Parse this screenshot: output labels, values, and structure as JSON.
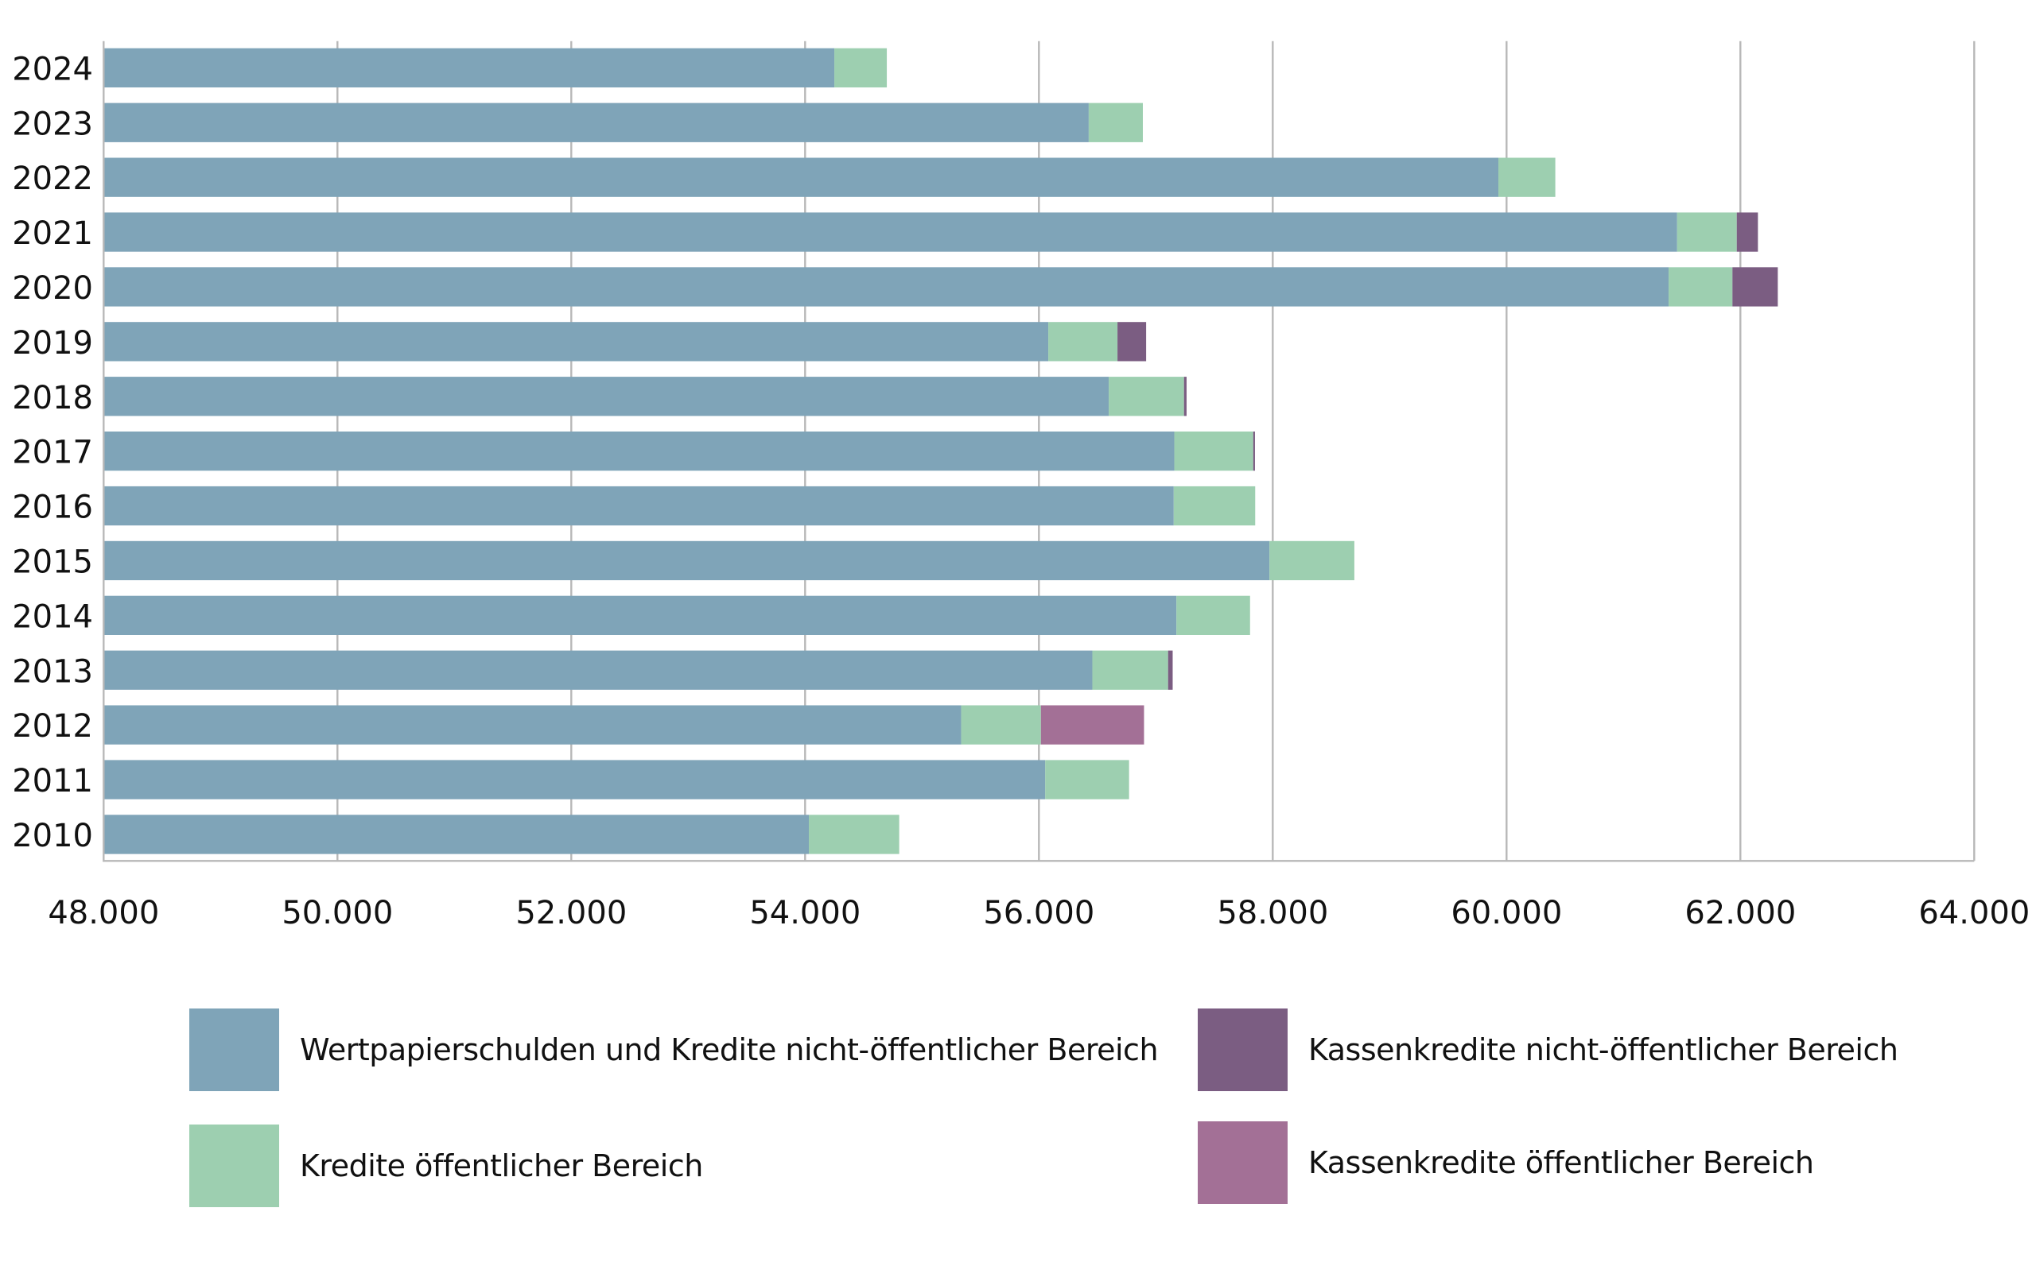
{
  "chart_data": {
    "type": "bar",
    "orientation": "horizontal",
    "stacked": true,
    "title": "",
    "xlabel": "",
    "ylabel": "",
    "xlim": [
      48000,
      64000
    ],
    "x_ticks": [
      48000,
      50000,
      52000,
      54000,
      56000,
      58000,
      60000,
      62000,
      64000
    ],
    "x_tick_labels": [
      "48.000",
      "50.000",
      "52.000",
      "54.000",
      "56.000",
      "58.000",
      "60.000",
      "62.000",
      "64.000"
    ],
    "grid": "vertical",
    "legend_position": "bottom",
    "categories": [
      "2024",
      "2023",
      "2022",
      "2021",
      "2020",
      "2019",
      "2018",
      "2017",
      "2016",
      "2015",
      "2014",
      "2013",
      "2012",
      "2011",
      "2010"
    ],
    "series": [
      {
        "name": "Wertpapierschulden und Kredite nicht-öffentlicher Bereich",
        "color": "#7fa4b8",
        "values": [
          54250,
          56426,
          59930,
          61459,
          61386,
          56080,
          56597,
          57158,
          57153,
          57972,
          57176,
          56457,
          55335,
          56054,
          54032
        ]
      },
      {
        "name": "Kredite öffentlicher Bereich",
        "color": "#9dcfb0",
        "values": [
          449,
          463,
          487,
          510,
          546,
          592,
          644,
          675,
          697,
          726,
          630,
          648,
          682,
          717,
          773
        ]
      },
      {
        "name": "Kassenkredite nicht-öffentlicher Bereich",
        "color": "#7b5d82",
        "values": [
          0,
          0,
          0,
          181,
          388,
          245,
          22,
          15,
          0,
          0,
          0,
          39,
          0,
          0,
          0
        ]
      },
      {
        "name": "Kassenkredite öffentlicher Bereich",
        "color": "#a37096",
        "values": [
          0,
          0,
          0,
          0,
          0,
          0,
          0,
          0,
          0,
          0,
          0,
          0,
          882,
          0,
          0
        ]
      }
    ]
  },
  "legend": {
    "items": [
      {
        "label": "Wertpapierschulden und Kredite nicht-öffentlicher Bereich",
        "color": "#7fa4b8"
      },
      {
        "label": "Kassenkredite nicht-öffentlicher Bereich",
        "color": "#7b5d82"
      },
      {
        "label": "Kredite öffentlicher Bereich",
        "color": "#9dcfb0"
      },
      {
        "label": "Kassenkredite öffentlicher Bereich",
        "color": "#a37096"
      }
    ]
  }
}
